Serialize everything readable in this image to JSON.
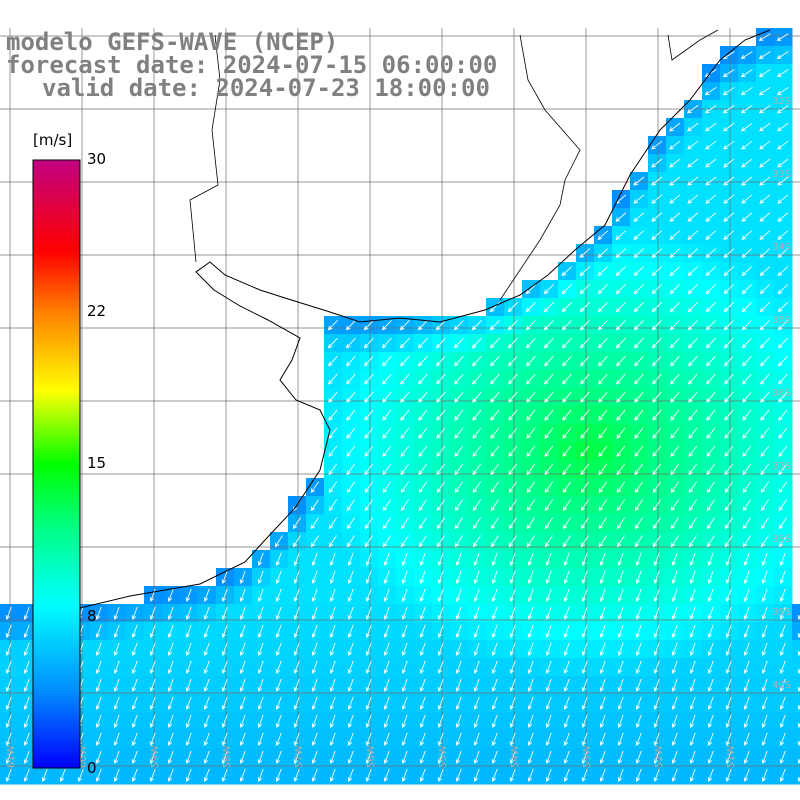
{
  "title": {
    "line1": "modelo GEFS-WAVE (NCEP)",
    "line2": "forecast date: 2024-07-15 06:00:00",
    "line3": "valid date: 2024-07-23 18:00:00"
  },
  "colorbar": {
    "unit": "[m/s]",
    "ticks": [
      "30",
      "22",
      "15",
      "8",
      "0"
    ],
    "range": [
      0,
      30
    ],
    "colors": [
      "#0000ff",
      "#00a8ff",
      "#00ffff",
      "#00ff00",
      "#ffff00",
      "#ff8000",
      "#ff0000",
      "#c00080"
    ]
  },
  "map": {
    "variable": "wind speed and direction",
    "land_color": "#ffffff",
    "grid": true,
    "lat_labels": [
      "32S",
      "33S",
      "34S",
      "35S",
      "36S",
      "37S",
      "38S",
      "39S",
      "40S"
    ],
    "lon_labels": [
      "61W",
      "60W",
      "59W",
      "58W",
      "57W",
      "56W",
      "55W",
      "54W",
      "53W",
      "52W",
      "51W"
    ]
  }
}
